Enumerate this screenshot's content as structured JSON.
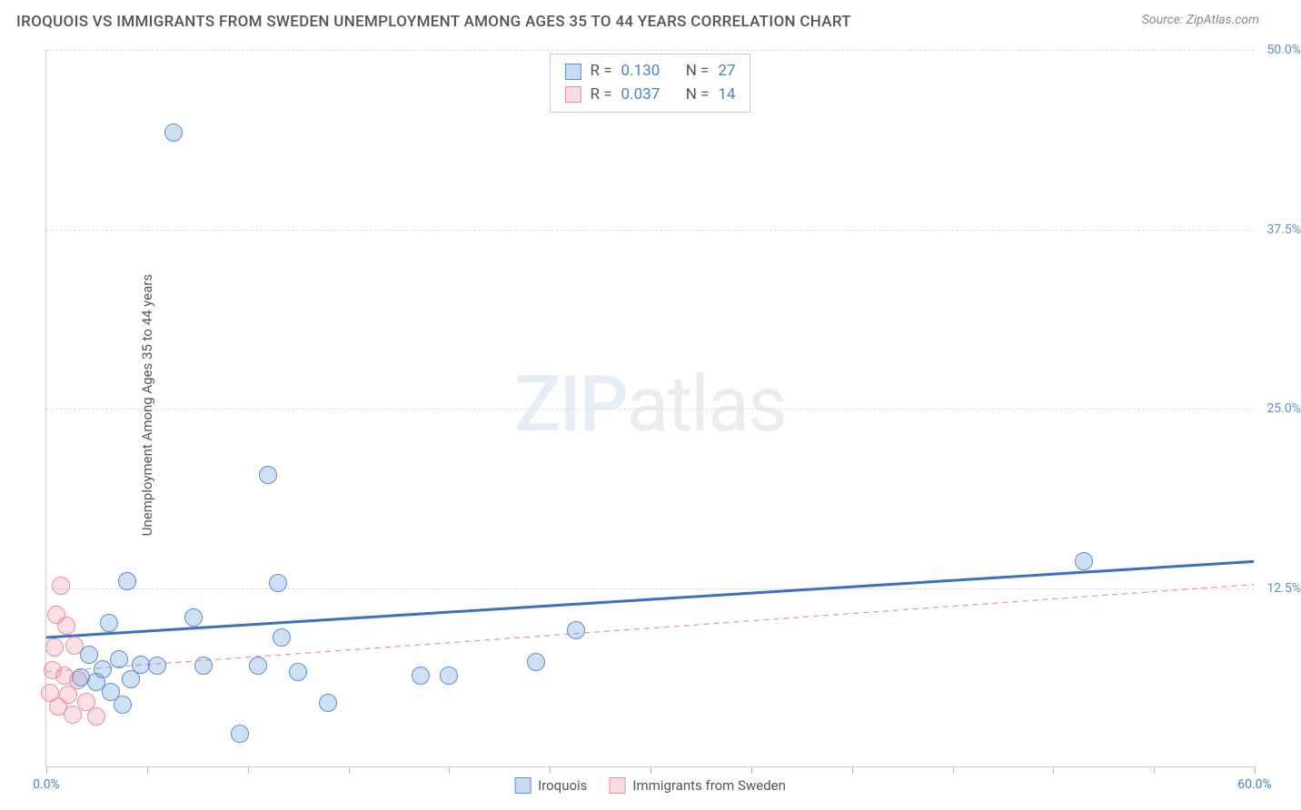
{
  "title": "IROQUOIS VS IMMIGRANTS FROM SWEDEN UNEMPLOYMENT AMONG AGES 35 TO 44 YEARS CORRELATION CHART",
  "source": "Source: ZipAtlas.com",
  "ylabel": "Unemployment Among Ages 35 to 44 years",
  "watermark_a": "ZIP",
  "watermark_b": "atlas",
  "chart": {
    "type": "scatter",
    "xlim": [
      0,
      60
    ],
    "ylim": [
      0,
      50
    ],
    "xtick_positions": [
      0,
      5,
      10,
      15,
      20,
      25,
      30,
      35,
      40,
      45,
      50,
      55,
      60
    ],
    "ytick_positions": [
      12.5,
      25.0,
      37.5,
      50.0
    ],
    "xtick_labels": {
      "0": "0.0%",
      "60": "60.0%"
    },
    "ytick_labels": {
      "12.5": "12.5%",
      "25": "25.0%",
      "37.5": "37.5%",
      "50": "50.0%"
    },
    "x_label_color": "#4a7fd0",
    "y_label_color": "#5a8fd6",
    "grid_color": "#dddddd",
    "background_color": "#ffffff",
    "marker_radius": 10
  },
  "series": {
    "iroquois": {
      "label": "Iroquois",
      "color_fill": "rgba(116,168,222,0.35)",
      "color_stroke": "#5a8fd6",
      "R": "0.130",
      "N": "27",
      "trend": {
        "x1": 0,
        "y1": 9.0,
        "x2": 60,
        "y2": 14.3,
        "stroke": "#3b6fc4",
        "width": 3,
        "dash": "none"
      },
      "points": [
        {
          "x": 6.3,
          "y": 44.2
        },
        {
          "x": 11.0,
          "y": 20.3
        },
        {
          "x": 51.5,
          "y": 14.3
        },
        {
          "x": 4.0,
          "y": 12.9
        },
        {
          "x": 11.5,
          "y": 12.8
        },
        {
          "x": 7.3,
          "y": 10.4
        },
        {
          "x": 3.1,
          "y": 10.0
        },
        {
          "x": 11.7,
          "y": 9.0
        },
        {
          "x": 26.3,
          "y": 9.5
        },
        {
          "x": 2.1,
          "y": 7.8
        },
        {
          "x": 3.6,
          "y": 7.5
        },
        {
          "x": 4.7,
          "y": 7.1
        },
        {
          "x": 5.5,
          "y": 7.0
        },
        {
          "x": 7.8,
          "y": 7.0
        },
        {
          "x": 10.5,
          "y": 7.0
        },
        {
          "x": 12.5,
          "y": 6.6
        },
        {
          "x": 18.6,
          "y": 6.3
        },
        {
          "x": 20.0,
          "y": 6.3
        },
        {
          "x": 24.3,
          "y": 7.3
        },
        {
          "x": 2.5,
          "y": 5.9
        },
        {
          "x": 3.2,
          "y": 5.2
        },
        {
          "x": 14.0,
          "y": 4.4
        },
        {
          "x": 9.6,
          "y": 2.3
        },
        {
          "x": 3.8,
          "y": 4.3
        },
        {
          "x": 1.7,
          "y": 6.2
        },
        {
          "x": 2.8,
          "y": 6.8
        },
        {
          "x": 4.2,
          "y": 6.1
        }
      ]
    },
    "sweden": {
      "label": "Immigrants from Sweden",
      "color_fill": "rgba(240,150,170,0.3)",
      "color_stroke": "#e890a8",
      "R": "0.037",
      "N": "14",
      "trend": {
        "x1": 0,
        "y1": 6.6,
        "x2": 60,
        "y2": 12.7,
        "stroke": "#e890a8",
        "width": 1.2,
        "dash": "6 5"
      },
      "points": [
        {
          "x": 0.7,
          "y": 12.6
        },
        {
          "x": 0.5,
          "y": 10.6
        },
        {
          "x": 1.0,
          "y": 9.8
        },
        {
          "x": 0.4,
          "y": 8.3
        },
        {
          "x": 1.4,
          "y": 8.4
        },
        {
          "x": 0.3,
          "y": 6.7
        },
        {
          "x": 0.9,
          "y": 6.3
        },
        {
          "x": 1.6,
          "y": 6.0
        },
        {
          "x": 0.2,
          "y": 5.1
        },
        {
          "x": 1.1,
          "y": 5.0
        },
        {
          "x": 2.0,
          "y": 4.5
        },
        {
          "x": 1.3,
          "y": 3.6
        },
        {
          "x": 2.5,
          "y": 3.5
        },
        {
          "x": 0.6,
          "y": 4.2
        }
      ]
    }
  },
  "stats_prefix_r": "R  =",
  "stats_prefix_n": "N  ="
}
